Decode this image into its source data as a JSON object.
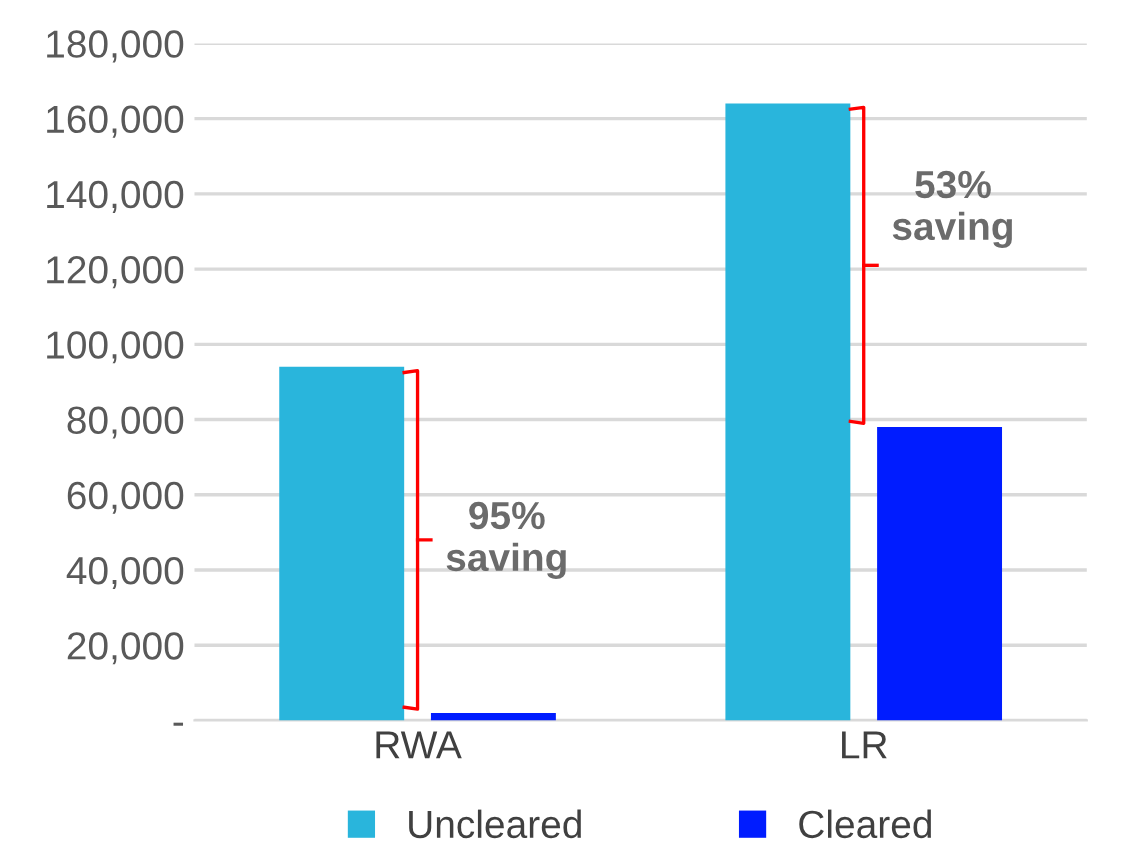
{
  "chart_data": {
    "type": "bar",
    "categories": [
      "RWA",
      "LR"
    ],
    "series": [
      {
        "name": "Uncleared",
        "color": "#29b5dc",
        "values": [
          94000,
          164000
        ]
      },
      {
        "name": "Cleared",
        "color": "#001cff",
        "values": [
          2000,
          78000
        ]
      }
    ],
    "ylim": [
      0,
      180000
    ],
    "yticks": [
      {
        "value": 0,
        "label": "-"
      },
      {
        "value": 20000,
        "label": "20,000"
      },
      {
        "value": 40000,
        "label": "40,000"
      },
      {
        "value": 60000,
        "label": "60,000"
      },
      {
        "value": 80000,
        "label": "80,000"
      },
      {
        "value": 100000,
        "label": "100,000"
      },
      {
        "value": 120000,
        "label": "120,000"
      },
      {
        "value": 140000,
        "label": "140,000"
      },
      {
        "value": 160000,
        "label": "160,000"
      },
      {
        "value": 180000,
        "label": "180,000"
      }
    ],
    "grid": "y",
    "legend": "bottom",
    "annotations": [
      "95%\nsaving",
      "53%\nsaving"
    ]
  }
}
